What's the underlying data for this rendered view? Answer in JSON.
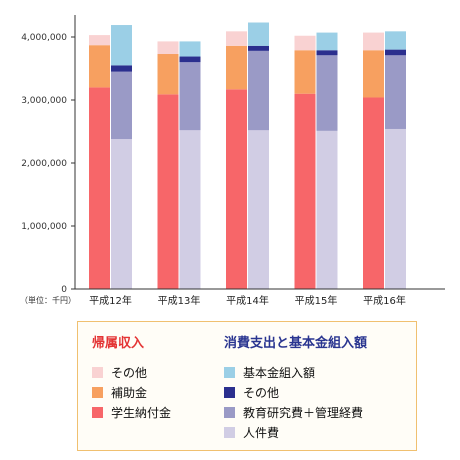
{
  "chart_data": {
    "type": "bar",
    "stacked": true,
    "grouped": true,
    "categories": [
      "平成12年",
      "平成13年",
      "平成14年",
      "平成15年",
      "平成16年"
    ],
    "unit_label": "（単位：千円）",
    "ylim": [
      0,
      4500000
    ],
    "yticks": [
      0,
      1000000,
      2000000,
      3000000,
      4000000
    ],
    "ytick_labels": [
      "0",
      "1,000,000",
      "2,000,000",
      "3,000,000",
      "4,000,000"
    ],
    "grid": false,
    "stacks": [
      {
        "group": "帰属収入",
        "series": [
          {
            "name": "学生納付金",
            "color": "#f76669",
            "values": [
              3200000,
              3090000,
              3170000,
              3100000,
              3040000
            ]
          },
          {
            "name": "補助金",
            "color": "#f7a060",
            "values": [
              670000,
              640000,
              690000,
              690000,
              750000
            ]
          },
          {
            "name": "その他",
            "color": "#f9d2d2",
            "values": [
              160000,
              200000,
              230000,
              230000,
              280000
            ]
          }
        ]
      },
      {
        "group": "消費支出と基本金組入額",
        "series": [
          {
            "name": "人件費",
            "color": "#d1cde4",
            "values": [
              2380000,
              2520000,
              2520000,
              2510000,
              2540000
            ]
          },
          {
            "name": "教育研究費＋管理経費",
            "color": "#9a9ac6",
            "values": [
              1070000,
              1080000,
              1260000,
              1200000,
              1170000
            ]
          },
          {
            "name": "その他",
            "color": "#2b2f8e",
            "values": [
              100000,
              90000,
              80000,
              80000,
              90000
            ]
          },
          {
            "name": "基本金組入額",
            "color": "#9bcfe6",
            "values": [
              640000,
              240000,
              370000,
              280000,
              290000
            ]
          }
        ]
      }
    ],
    "legend": {
      "left_title": "帰属収入",
      "right_title": "消費支出と基本金組入額",
      "left_items": [
        {
          "label": "その他",
          "color": "#f9d2d2"
        },
        {
          "label": "補助金",
          "color": "#f7a060"
        },
        {
          "label": "学生納付金",
          "color": "#f76669"
        }
      ],
      "right_items": [
        {
          "label": "基本金組入額",
          "color": "#9bcfe6"
        },
        {
          "label": "その他",
          "color": "#2b2f8e"
        },
        {
          "label": "教育研究費＋管理経費",
          "color": "#9a9ac6"
        },
        {
          "label": "人件費",
          "color": "#d1cde4"
        }
      ]
    }
  }
}
